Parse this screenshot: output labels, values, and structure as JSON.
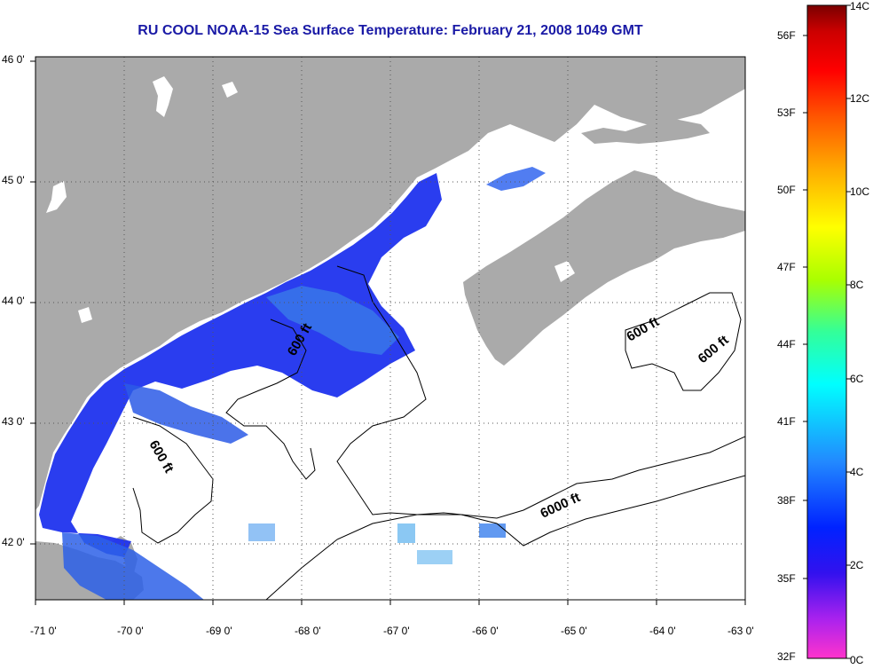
{
  "title": "RU COOL  NOAA-15  Sea Surface Temperature:  February 21, 2008 1049 GMT",
  "map": {
    "lat_labels": [
      "46 0'",
      "45 0'",
      "44 0'",
      "43 0'",
      "42 0'"
    ],
    "lon_labels": [
      "-71 0'",
      "-70 0'",
      "-69 0'",
      "-68 0'",
      "-67 0'",
      "-66 0'",
      "-65 0'",
      "-64 0'",
      "-63 0'"
    ],
    "lat_range": [
      41.5,
      46.0
    ],
    "lon_range": [
      -71.0,
      -63.0
    ],
    "contour_labels": [
      "600 ft",
      "600 ft",
      "600 ft",
      "600 ft",
      "6000 ft"
    ],
    "colors": {
      "land": "#aaaaaa",
      "cloud": "#ffffff",
      "water_cold": "#1f33ee",
      "water_warm": "#35a6e6"
    }
  },
  "colorbar": {
    "fahrenheit_labels": [
      "56F",
      "53F",
      "50F",
      "47F",
      "44F",
      "41F",
      "38F",
      "35F",
      "32F"
    ],
    "celsius_labels": [
      "14C",
      "12C",
      "10C",
      "8C",
      "6C",
      "4C",
      "2C",
      "0C"
    ],
    "range_c": [
      0,
      14
    ],
    "gradient": [
      "#ff33cc",
      "#aa22ee",
      "#3311ee",
      "#0022ff",
      "#2288ff",
      "#00ffff",
      "#33ff99",
      "#aaff00",
      "#ffff00",
      "#ffaa00",
      "#ff5500",
      "#ff0000",
      "#cc0000",
      "#7a0000"
    ]
  }
}
